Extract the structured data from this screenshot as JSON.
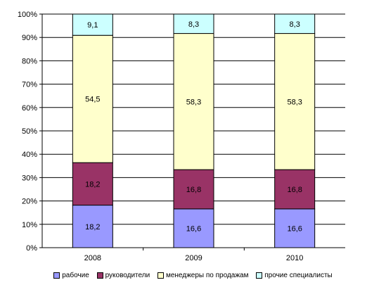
{
  "chart_data": {
    "type": "bar",
    "stacked": true,
    "percent": true,
    "categories": [
      "2008",
      "2009",
      "2010"
    ],
    "series": [
      {
        "name": "рабочие",
        "color": "#9999ff",
        "values": [
          18.2,
          16.6,
          16.6
        ],
        "labels": [
          "18,2",
          "16,6",
          "16,6"
        ]
      },
      {
        "name": "руководители",
        "color": "#993366",
        "values": [
          18.2,
          16.8,
          16.8
        ],
        "labels": [
          "18,2",
          "16,8",
          "16,8"
        ]
      },
      {
        "name": "менеджеры по продажам",
        "color": "#ffffcc",
        "values": [
          54.5,
          58.3,
          58.3
        ],
        "labels": [
          "54,5",
          "58,3",
          "58,3"
        ]
      },
      {
        "name": "прочие специалисты",
        "color": "#ccffff",
        "values": [
          9.1,
          8.3,
          8.3
        ],
        "labels": [
          "9,1",
          "8,3",
          "8,3"
        ]
      }
    ],
    "yticks": [
      "0%",
      "10%",
      "20%",
      "30%",
      "40%",
      "50%",
      "60%",
      "70%",
      "80%",
      "90%",
      "100%"
    ],
    "ylim": [
      0,
      100
    ],
    "grid": true,
    "legend_position": "bottom"
  }
}
